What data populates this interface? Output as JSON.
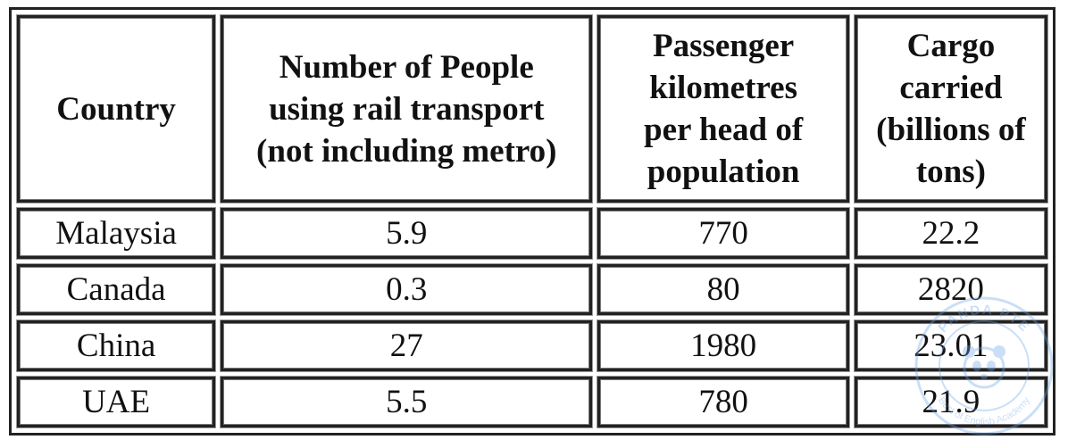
{
  "chart_data": {
    "type": "table",
    "columns": [
      "Country",
      "Number of People using rail transport (not including metro)",
      "Passenger kilometres per head of population",
      "Cargo carried (billions of tons)"
    ],
    "header_lines": [
      [
        "Country"
      ],
      [
        "Number of People",
        "using rail transport",
        "(not including metro)"
      ],
      [
        "Passenger",
        "kilometres",
        "per head of",
        "population"
      ],
      [
        "Cargo",
        "carried",
        "(billions of",
        "tons)"
      ]
    ],
    "rows": [
      [
        "Malaysia",
        "5.9",
        "770",
        "22.2"
      ],
      [
        "Canada",
        "0.3",
        "80",
        "2820"
      ],
      [
        "China",
        "27",
        "1980",
        "23.01"
      ],
      [
        "UAE",
        "5.5",
        "780",
        "21.9"
      ]
    ]
  },
  "watermark": {
    "text_top": "PANDA PTE",
    "text_bottom": "Best of English Academy",
    "color": "#6aa6e8"
  }
}
